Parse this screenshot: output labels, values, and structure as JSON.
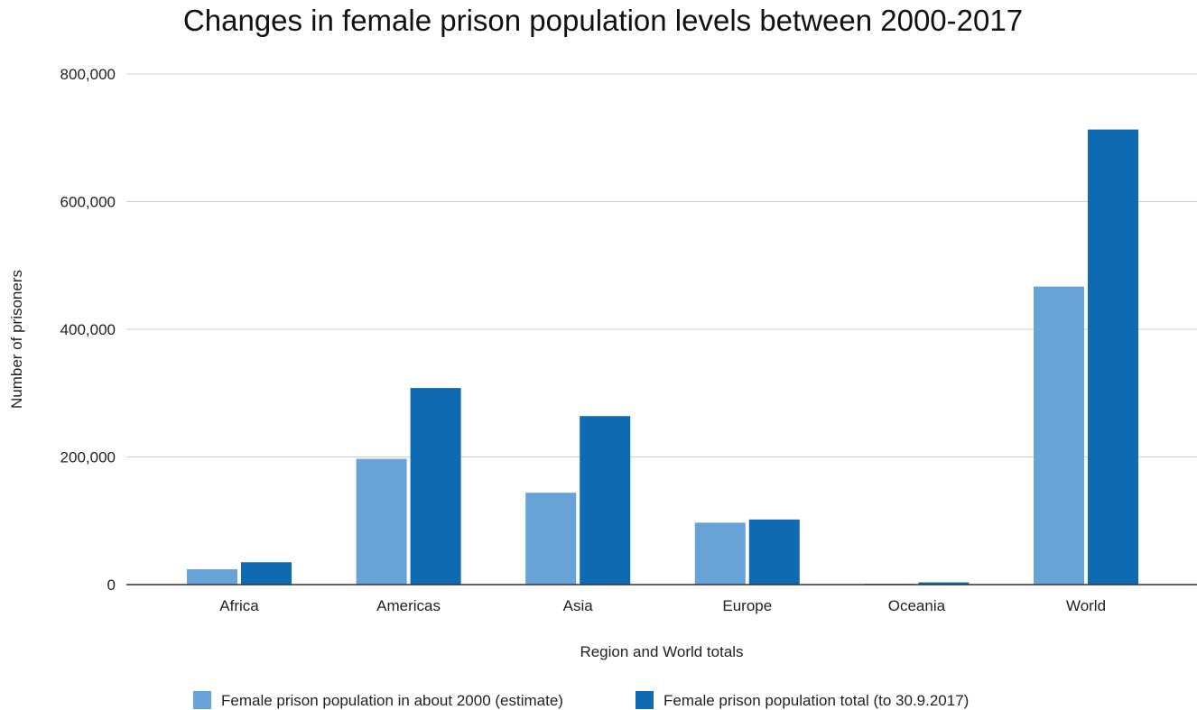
{
  "chart_data": {
    "type": "bar",
    "title": "Changes in female prison population levels between 2000-2017",
    "xlabel": "Region and World totals",
    "ylabel": "Number of prisoners",
    "categories": [
      "Africa",
      "Americas",
      "Asia",
      "Europe",
      "Oceania",
      "World"
    ],
    "series": [
      {
        "name": "Female prison population in about 2000 (estimate)",
        "color": "#68a3d8",
        "values": [
          24000,
          197000,
          144000,
          97000,
          1500,
          467000
        ]
      },
      {
        "name": "Female prison population total (to 30.9.2017)",
        "color": "#0e6ab2",
        "values": [
          35000,
          308000,
          264000,
          102000,
          3500,
          713000
        ]
      }
    ],
    "ylim": [
      0,
      800000
    ],
    "yticks": [
      0,
      200000,
      400000,
      600000,
      800000
    ],
    "ytick_labels": [
      "0",
      "200,000",
      "400,000",
      "600,000",
      "800,000"
    ],
    "grid": true,
    "legend_position": "bottom"
  }
}
